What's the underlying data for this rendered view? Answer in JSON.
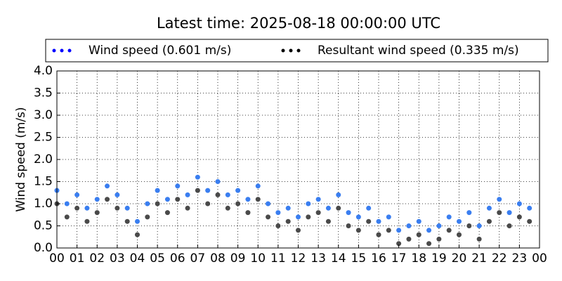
{
  "chart_data": {
    "type": "scatter",
    "title": "Latest time: 2025-08-18 00:00:00 UTC",
    "y_label": "Wind speed (m/s)",
    "xlim": [
      0,
      24
    ],
    "xticks": [
      {
        "value": 0,
        "label": "00"
      },
      {
        "value": 1,
        "label": "01"
      },
      {
        "value": 2,
        "label": "02"
      },
      {
        "value": 3,
        "label": "03"
      },
      {
        "value": 4,
        "label": "04"
      },
      {
        "value": 5,
        "label": "05"
      },
      {
        "value": 6,
        "label": "06"
      },
      {
        "value": 7,
        "label": "07"
      },
      {
        "value": 8,
        "label": "08"
      },
      {
        "value": 9,
        "label": "09"
      },
      {
        "value": 10,
        "label": "10"
      },
      {
        "value": 11,
        "label": "11"
      },
      {
        "value": 12,
        "label": "12"
      },
      {
        "value": 13,
        "label": "13"
      },
      {
        "value": 14,
        "label": "14"
      },
      {
        "value": 15,
        "label": "15"
      },
      {
        "value": 16,
        "label": "16"
      },
      {
        "value": 17,
        "label": "17"
      },
      {
        "value": 18,
        "label": "18"
      },
      {
        "value": 19,
        "label": "19"
      },
      {
        "value": 20,
        "label": "20"
      },
      {
        "value": 21,
        "label": "21"
      },
      {
        "value": 22,
        "label": "22"
      },
      {
        "value": 23,
        "label": "23"
      },
      {
        "value": 24,
        "label": "00"
      }
    ],
    "ylim": [
      0,
      4
    ],
    "yticks": [
      {
        "value": 0,
        "label": "0.0"
      },
      0.5,
      {
        "value": 1,
        "label": "1.0"
      },
      1.5,
      {
        "value": 2,
        "label": "2.0"
      },
      2.5,
      {
        "value": 3,
        "label": "3.0"
      },
      3.5,
      {
        "value": 4,
        "label": "4.0"
      }
    ],
    "grid": true,
    "legend": "top",
    "x": [
      0,
      0.5,
      1,
      1.5,
      2,
      2.5,
      3,
      3.5,
      4,
      4.5,
      5,
      5.5,
      6,
      6.5,
      7,
      7.5,
      8,
      8.5,
      9,
      9.5,
      10,
      10.5,
      11,
      11.5,
      12,
      12.5,
      13,
      13.5,
      14,
      14.5,
      15,
      15.5,
      16,
      16.5,
      17,
      17.5,
      18,
      18.5,
      19,
      19.5,
      20,
      20.5,
      21,
      21.5,
      22,
      22.5,
      23,
      23.5
    ],
    "series": [
      {
        "name": "Wind speed (0.601 m/s)",
        "color": "#3a7ef0",
        "values": [
          1.3,
          1.0,
          1.2,
          0.9,
          1.1,
          1.4,
          1.2,
          0.9,
          0.6,
          1.0,
          1.3,
          1.1,
          1.4,
          1.2,
          1.6,
          1.3,
          1.5,
          1.2,
          1.3,
          1.1,
          1.4,
          1.0,
          0.8,
          0.9,
          0.7,
          1.0,
          1.1,
          0.9,
          1.2,
          0.8,
          0.7,
          0.9,
          0.6,
          0.7,
          0.4,
          0.5,
          0.6,
          0.4,
          0.5,
          0.7,
          0.6,
          0.8,
          0.5,
          0.9,
          1.1,
          0.8,
          1.0,
          0.9
        ]
      },
      {
        "name": "Resultant wind speed (0.335 m/s)",
        "color": "#4a4a4a",
        "values": [
          1.0,
          0.7,
          0.9,
          0.6,
          0.8,
          1.1,
          0.9,
          0.6,
          0.3,
          0.7,
          1.0,
          0.8,
          1.1,
          0.9,
          1.3,
          1.0,
          1.2,
          0.9,
          1.0,
          0.8,
          1.1,
          0.7,
          0.5,
          0.6,
          0.4,
          0.7,
          0.8,
          0.6,
          0.9,
          0.5,
          0.4,
          0.6,
          0.3,
          0.4,
          0.1,
          0.2,
          0.3,
          0.1,
          0.2,
          0.4,
          0.3,
          0.5,
          0.2,
          0.6,
          0.8,
          0.5,
          0.7,
          0.6
        ]
      }
    ]
  }
}
